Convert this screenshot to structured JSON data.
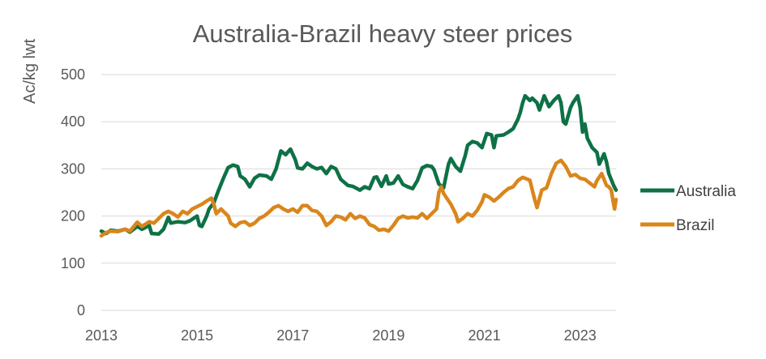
{
  "chart_data": {
    "type": "line",
    "title": "Australia-Brazil heavy steer prices",
    "xlabel": "",
    "ylabel": "Ac/kg lwt",
    "xlim": [
      2013,
      2023.75
    ],
    "ylim": [
      0,
      500
    ],
    "x_ticks": [
      "2013",
      "2015",
      "2017",
      "2019",
      "2021",
      "2023"
    ],
    "y_ticks": [
      "0",
      "100",
      "200",
      "300",
      "400",
      "500"
    ],
    "grid": true,
    "legend_position": "right",
    "series": [
      {
        "name": "Australia",
        "color": "#0e7146",
        "points": [
          [
            2013.0,
            168
          ],
          [
            2013.1,
            163
          ],
          [
            2013.2,
            170
          ],
          [
            2013.35,
            168
          ],
          [
            2013.5,
            172
          ],
          [
            2013.6,
            166
          ],
          [
            2013.75,
            178
          ],
          [
            2013.85,
            172
          ],
          [
            2014.0,
            180
          ],
          [
            2014.05,
            163
          ],
          [
            2014.2,
            162
          ],
          [
            2014.3,
            172
          ],
          [
            2014.4,
            197
          ],
          [
            2014.45,
            185
          ],
          [
            2014.6,
            188
          ],
          [
            2014.75,
            186
          ],
          [
            2014.85,
            190
          ],
          [
            2015.0,
            200
          ],
          [
            2015.05,
            180
          ],
          [
            2015.1,
            178
          ],
          [
            2015.2,
            200
          ],
          [
            2015.25,
            215
          ],
          [
            2015.35,
            228
          ],
          [
            2015.45,
            255
          ],
          [
            2015.55,
            280
          ],
          [
            2015.65,
            303
          ],
          [
            2015.75,
            308
          ],
          [
            2015.85,
            305
          ],
          [
            2015.9,
            285
          ],
          [
            2016.0,
            278
          ],
          [
            2016.1,
            262
          ],
          [
            2016.2,
            280
          ],
          [
            2016.3,
            287
          ],
          [
            2016.45,
            285
          ],
          [
            2016.55,
            278
          ],
          [
            2016.65,
            300
          ],
          [
            2016.75,
            338
          ],
          [
            2016.85,
            330
          ],
          [
            2016.95,
            342
          ],
          [
            2017.05,
            320
          ],
          [
            2017.1,
            302
          ],
          [
            2017.2,
            300
          ],
          [
            2017.3,
            312
          ],
          [
            2017.4,
            305
          ],
          [
            2017.5,
            300
          ],
          [
            2017.6,
            303
          ],
          [
            2017.7,
            290
          ],
          [
            2017.8,
            305
          ],
          [
            2017.9,
            300
          ],
          [
            2018.0,
            278
          ],
          [
            2018.15,
            265
          ],
          [
            2018.25,
            263
          ],
          [
            2018.4,
            255
          ],
          [
            2018.5,
            262
          ],
          [
            2018.6,
            258
          ],
          [
            2018.7,
            282
          ],
          [
            2018.75,
            283
          ],
          [
            2018.85,
            263
          ],
          [
            2018.95,
            285
          ],
          [
            2019.0,
            268
          ],
          [
            2019.1,
            270
          ],
          [
            2019.2,
            285
          ],
          [
            2019.3,
            267
          ],
          [
            2019.4,
            262
          ],
          [
            2019.5,
            258
          ],
          [
            2019.6,
            275
          ],
          [
            2019.7,
            302
          ],
          [
            2019.8,
            307
          ],
          [
            2019.9,
            305
          ],
          [
            2019.95,
            298
          ],
          [
            2020.05,
            268
          ],
          [
            2020.15,
            260
          ],
          [
            2020.25,
            310
          ],
          [
            2020.3,
            322
          ],
          [
            2020.4,
            305
          ],
          [
            2020.5,
            295
          ],
          [
            2020.6,
            328
          ],
          [
            2020.65,
            350
          ],
          [
            2020.75,
            358
          ],
          [
            2020.85,
            355
          ],
          [
            2020.95,
            345
          ],
          [
            2021.05,
            375
          ],
          [
            2021.15,
            372
          ],
          [
            2021.2,
            345
          ],
          [
            2021.25,
            370
          ],
          [
            2021.4,
            372
          ],
          [
            2021.5,
            378
          ],
          [
            2021.6,
            385
          ],
          [
            2021.7,
            405
          ],
          [
            2021.75,
            420
          ],
          [
            2021.8,
            440
          ],
          [
            2021.85,
            455
          ],
          [
            2021.95,
            445
          ],
          [
            2022.0,
            450
          ],
          [
            2022.1,
            440
          ],
          [
            2022.15,
            425
          ],
          [
            2022.25,
            455
          ],
          [
            2022.35,
            432
          ],
          [
            2022.45,
            445
          ],
          [
            2022.55,
            455
          ],
          [
            2022.6,
            440
          ],
          [
            2022.65,
            400
          ],
          [
            2022.7,
            395
          ],
          [
            2022.8,
            430
          ],
          [
            2022.85,
            440
          ],
          [
            2022.95,
            455
          ],
          [
            2023.0,
            430
          ],
          [
            2023.05,
            378
          ],
          [
            2023.1,
            395
          ],
          [
            2023.15,
            365
          ],
          [
            2023.25,
            345
          ],
          [
            2023.35,
            335
          ],
          [
            2023.4,
            310
          ],
          [
            2023.5,
            332
          ],
          [
            2023.55,
            315
          ],
          [
            2023.6,
            290
          ],
          [
            2023.7,
            265
          ],
          [
            2023.75,
            255
          ]
        ]
      },
      {
        "name": "Brazil",
        "color": "#d9861c",
        "points": [
          [
            2013.0,
            158
          ],
          [
            2013.1,
            165
          ],
          [
            2013.2,
            168
          ],
          [
            2013.35,
            167
          ],
          [
            2013.5,
            172
          ],
          [
            2013.6,
            168
          ],
          [
            2013.75,
            187
          ],
          [
            2013.85,
            178
          ],
          [
            2014.0,
            188
          ],
          [
            2014.1,
            185
          ],
          [
            2014.2,
            195
          ],
          [
            2014.3,
            205
          ],
          [
            2014.4,
            210
          ],
          [
            2014.5,
            205
          ],
          [
            2014.6,
            198
          ],
          [
            2014.7,
            210
          ],
          [
            2014.8,
            205
          ],
          [
            2014.9,
            215
          ],
          [
            2015.0,
            220
          ],
          [
            2015.1,
            225
          ],
          [
            2015.2,
            232
          ],
          [
            2015.3,
            238
          ],
          [
            2015.35,
            225
          ],
          [
            2015.4,
            205
          ],
          [
            2015.5,
            215
          ],
          [
            2015.55,
            210
          ],
          [
            2015.65,
            200
          ],
          [
            2015.7,
            185
          ],
          [
            2015.8,
            178
          ],
          [
            2015.9,
            186
          ],
          [
            2016.0,
            188
          ],
          [
            2016.1,
            180
          ],
          [
            2016.2,
            185
          ],
          [
            2016.3,
            195
          ],
          [
            2016.4,
            200
          ],
          [
            2016.5,
            208
          ],
          [
            2016.6,
            218
          ],
          [
            2016.7,
            222
          ],
          [
            2016.8,
            215
          ],
          [
            2016.9,
            210
          ],
          [
            2017.0,
            215
          ],
          [
            2017.1,
            208
          ],
          [
            2017.2,
            222
          ],
          [
            2017.3,
            222
          ],
          [
            2017.4,
            212
          ],
          [
            2017.5,
            210
          ],
          [
            2017.6,
            200
          ],
          [
            2017.7,
            180
          ],
          [
            2017.8,
            188
          ],
          [
            2017.9,
            200
          ],
          [
            2018.0,
            198
          ],
          [
            2018.1,
            192
          ],
          [
            2018.2,
            205
          ],
          [
            2018.3,
            195
          ],
          [
            2018.4,
            200
          ],
          [
            2018.5,
            196
          ],
          [
            2018.6,
            182
          ],
          [
            2018.7,
            178
          ],
          [
            2018.8,
            170
          ],
          [
            2018.9,
            172
          ],
          [
            2019.0,
            168
          ],
          [
            2019.1,
            180
          ],
          [
            2019.2,
            195
          ],
          [
            2019.3,
            200
          ],
          [
            2019.4,
            196
          ],
          [
            2019.5,
            198
          ],
          [
            2019.6,
            196
          ],
          [
            2019.7,
            205
          ],
          [
            2019.8,
            195
          ],
          [
            2019.9,
            205
          ],
          [
            2020.0,
            215
          ],
          [
            2020.05,
            250
          ],
          [
            2020.1,
            262
          ],
          [
            2020.15,
            248
          ],
          [
            2020.2,
            240
          ],
          [
            2020.3,
            225
          ],
          [
            2020.4,
            205
          ],
          [
            2020.45,
            188
          ],
          [
            2020.55,
            195
          ],
          [
            2020.65,
            205
          ],
          [
            2020.75,
            200
          ],
          [
            2020.85,
            212
          ],
          [
            2020.95,
            230
          ],
          [
            2021.0,
            245
          ],
          [
            2021.1,
            240
          ],
          [
            2021.2,
            232
          ],
          [
            2021.3,
            240
          ],
          [
            2021.4,
            250
          ],
          [
            2021.5,
            258
          ],
          [
            2021.6,
            262
          ],
          [
            2021.7,
            275
          ],
          [
            2021.8,
            282
          ],
          [
            2021.85,
            280
          ],
          [
            2021.95,
            276
          ],
          [
            2022.05,
            235
          ],
          [
            2022.1,
            218
          ],
          [
            2022.2,
            255
          ],
          [
            2022.3,
            260
          ],
          [
            2022.4,
            290
          ],
          [
            2022.5,
            312
          ],
          [
            2022.6,
            318
          ],
          [
            2022.7,
            305
          ],
          [
            2022.8,
            285
          ],
          [
            2022.9,
            288
          ],
          [
            2023.0,
            280
          ],
          [
            2023.1,
            278
          ],
          [
            2023.2,
            270
          ],
          [
            2023.3,
            262
          ],
          [
            2023.35,
            275
          ],
          [
            2023.45,
            290
          ],
          [
            2023.55,
            265
          ],
          [
            2023.6,
            262
          ],
          [
            2023.65,
            255
          ],
          [
            2023.7,
            225
          ],
          [
            2023.72,
            215
          ],
          [
            2023.75,
            235
          ]
        ]
      }
    ]
  }
}
